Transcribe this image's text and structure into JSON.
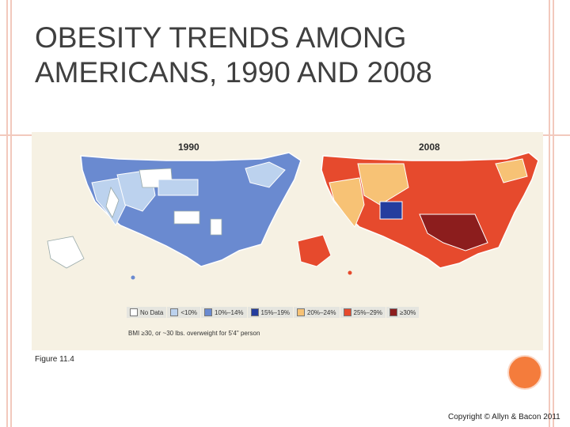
{
  "slide": {
    "title_line1": "OBESITY TRENDS AMONG",
    "title_line2": "AMERICANS, 1990 AND 2008",
    "caption": "Figure 11.4",
    "copyright": "Copyright © Allyn & Bacon 2011"
  },
  "figure": {
    "map1_label": "1990",
    "map2_label": "2008",
    "legend": [
      {
        "label": "No Data",
        "color": "#ffffff"
      },
      {
        "label": "<10%",
        "color": "#bcd2ee"
      },
      {
        "label": "10%–14%",
        "color": "#6a8ad0"
      },
      {
        "label": "15%–19%",
        "color": "#243d9e"
      },
      {
        "label": "20%–24%",
        "color": "#f7c275"
      },
      {
        "label": "25%–29%",
        "color": "#e64a2d"
      },
      {
        "label": "≥30%",
        "color": "#8c1d1d"
      }
    ],
    "note": "BMI ≥30, or ~30 lbs. overweight for 5'4\" person"
  },
  "colors": {
    "frame": "#f2c9bd",
    "accent_circle": "#f47c3c",
    "title_text": "#3f3f3f"
  }
}
